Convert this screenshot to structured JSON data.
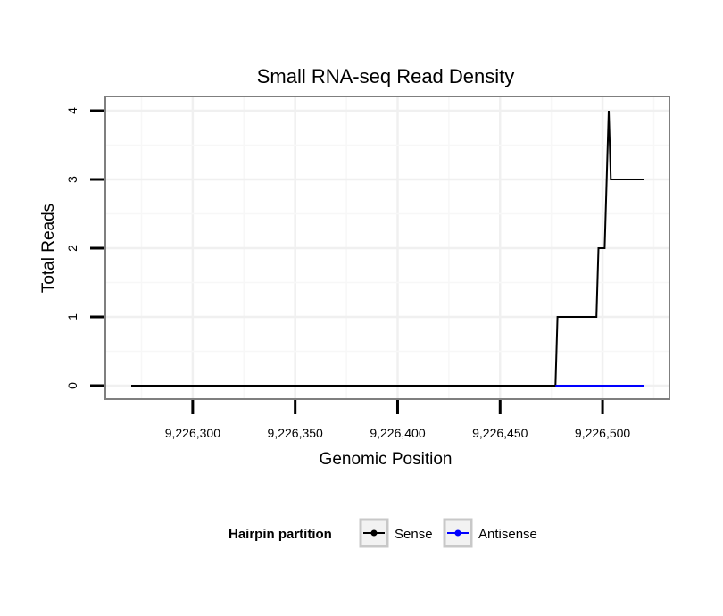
{
  "chart_data": {
    "type": "line",
    "title": "Small RNA-seq Read Density",
    "xlabel": "Genomic Position",
    "ylabel": "Total Reads",
    "xlim": [
      9226265,
      9226525
    ],
    "ylim": [
      -0.2,
      4.2
    ],
    "x_ticks": [
      9226300,
      9226350,
      9226400,
      9226450,
      9226500
    ],
    "x_tick_labels": [
      "9,226,300",
      "9,226,350",
      "9,226,400",
      "9,226,450",
      "9,226,500"
    ],
    "y_ticks": [
      0,
      1,
      2,
      3,
      4
    ],
    "y_tick_labels": [
      "0",
      "1",
      "2",
      "3",
      "4"
    ],
    "grid": true,
    "legend": {
      "title": "Hairpin partition",
      "position": "bottom"
    },
    "series": [
      {
        "name": "Sense",
        "color": "#000000",
        "x": [
          9226270,
          9226477,
          9226478,
          9226497,
          9226498,
          9226500,
          9226501,
          9226503,
          9226504,
          9226520
        ],
        "y": [
          0,
          0,
          1,
          1,
          2,
          2,
          2,
          4,
          3,
          3
        ]
      },
      {
        "name": "Antisense",
        "color": "#0000ff",
        "x": [
          9226477,
          9226520
        ],
        "y": [
          0,
          0
        ]
      }
    ]
  }
}
